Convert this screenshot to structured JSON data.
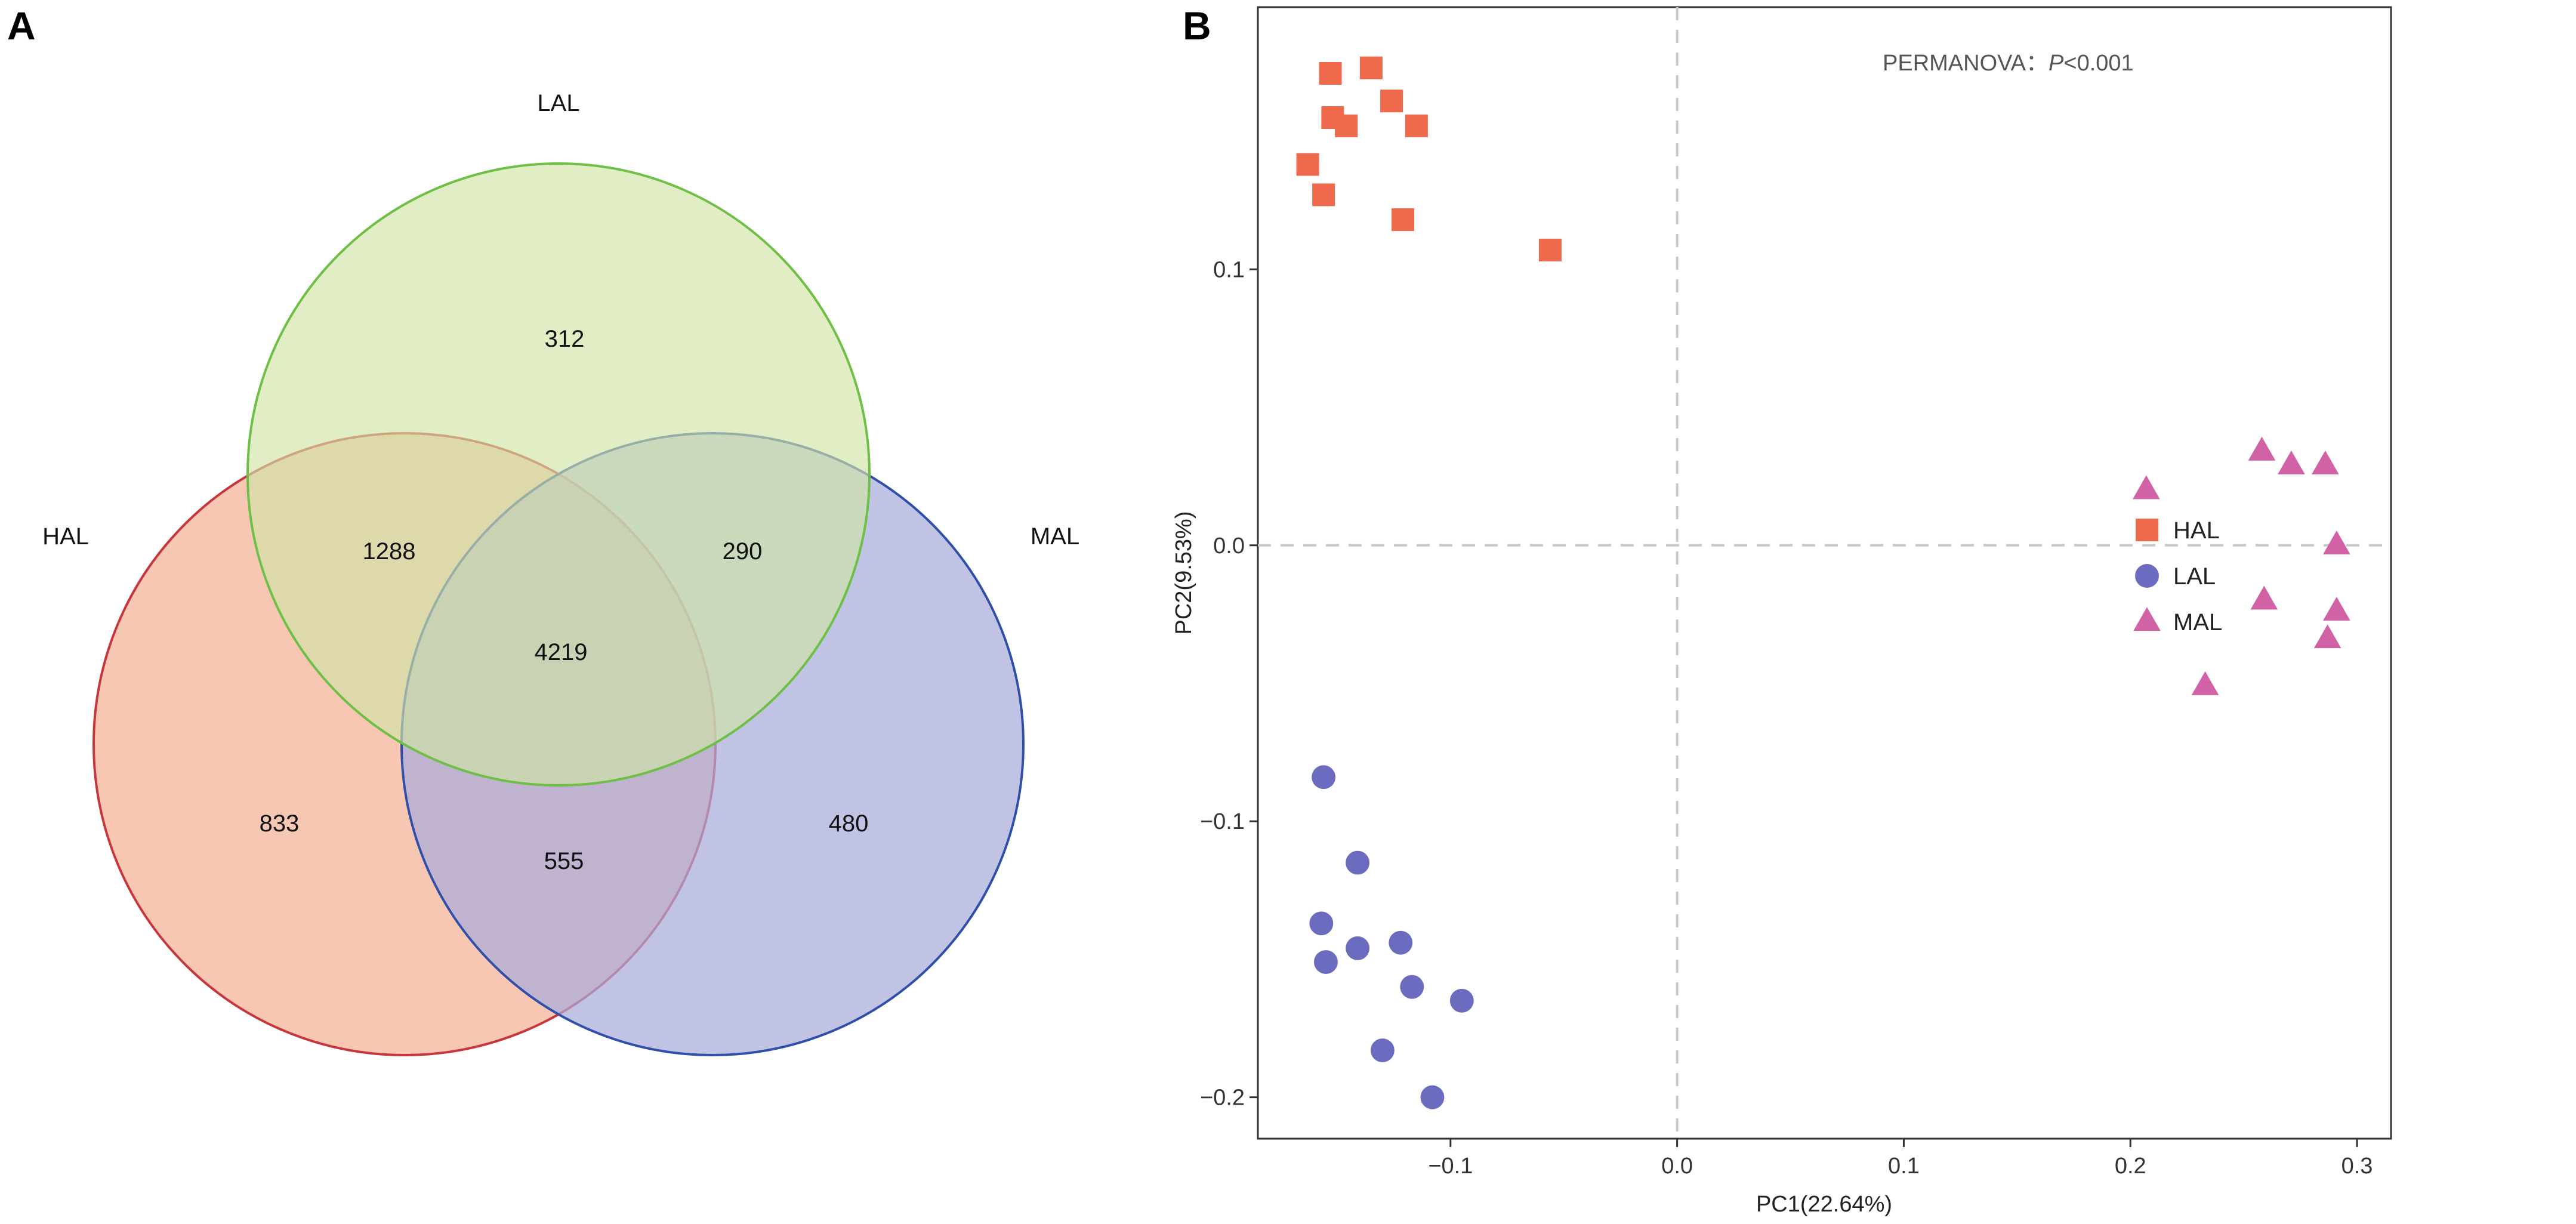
{
  "panels": {
    "a_label": "A",
    "b_label": "B"
  },
  "chart_data": [
    {
      "type": "venn",
      "panel": "A",
      "sets": [
        {
          "name": "LAL",
          "color": "#6dbf45",
          "fill": "#d9eab8"
        },
        {
          "name": "HAL",
          "color": "#c8353a",
          "fill": "#f4b49a"
        },
        {
          "name": "MAL",
          "color": "#2f4fa8",
          "fill": "#a9acd9"
        }
      ],
      "regions": {
        "LAL_only": "312",
        "HAL_LAL": "1288",
        "LAL_MAL": "290",
        "HAL_LAL_MAL": "4219",
        "HAL_only": "833",
        "HAL_MAL": "555",
        "MAL_only": "480"
      }
    },
    {
      "type": "scatter",
      "panel": "B",
      "xlabel": "PC1(22.64%)",
      "ylabel": "PC2(9.53%)",
      "xlim": [
        -0.185,
        0.315
      ],
      "ylim": [
        -0.215,
        0.195
      ],
      "xticks": [
        -0.1,
        0.0,
        0.1,
        0.2,
        0.3
      ],
      "xtick_labels": [
        "−0.1",
        "0.0",
        "0.1",
        "0.2",
        "0.3"
      ],
      "yticks": [
        -0.2,
        -0.1,
        0.0,
        0.1
      ],
      "ytick_labels": [
        "−0.2",
        "−0.1",
        "0.0",
        "0.1"
      ],
      "annotation": {
        "prefix": "PERMANOVA：",
        "p_symbol": "P",
        "suffix": "<0.001"
      },
      "reference_lines": {
        "x": 0.0,
        "y": 0.0
      },
      "legend": {
        "position": "right"
      },
      "series": [
        {
          "name": "HAL",
          "marker": "square",
          "color": "#ef6a4c",
          "points": [
            {
              "x": -0.153,
              "y": 0.171
            },
            {
              "x": -0.135,
              "y": 0.173
            },
            {
              "x": -0.152,
              "y": 0.155
            },
            {
              "x": -0.146,
              "y": 0.152
            },
            {
              "x": -0.126,
              "y": 0.161
            },
            {
              "x": -0.115,
              "y": 0.152
            },
            {
              "x": -0.163,
              "y": 0.138
            },
            {
              "x": -0.156,
              "y": 0.127
            },
            {
              "x": -0.121,
              "y": 0.118
            },
            {
              "x": -0.056,
              "y": 0.107
            }
          ]
        },
        {
          "name": "LAL",
          "marker": "circle",
          "color": "#6b6cbf",
          "points": [
            {
              "x": -0.156,
              "y": -0.084
            },
            {
              "x": -0.141,
              "y": -0.115
            },
            {
              "x": -0.157,
              "y": -0.137
            },
            {
              "x": -0.155,
              "y": -0.151
            },
            {
              "x": -0.141,
              "y": -0.146
            },
            {
              "x": -0.122,
              "y": -0.144
            },
            {
              "x": -0.117,
              "y": -0.16
            },
            {
              "x": -0.095,
              "y": -0.165
            },
            {
              "x": -0.13,
              "y": -0.183
            },
            {
              "x": -0.108,
              "y": -0.2
            }
          ]
        },
        {
          "name": "MAL",
          "marker": "triangle",
          "color": "#d262a6",
          "points": [
            {
              "x": 0.258,
              "y": 0.034
            },
            {
              "x": 0.271,
              "y": 0.029
            },
            {
              "x": 0.286,
              "y": 0.029
            },
            {
              "x": 0.207,
              "y": 0.02
            },
            {
              "x": 0.291,
              "y": 0.0
            },
            {
              "x": 0.259,
              "y": -0.02
            },
            {
              "x": 0.291,
              "y": -0.024
            },
            {
              "x": 0.287,
              "y": -0.034
            },
            {
              "x": 0.233,
              "y": -0.051
            }
          ]
        }
      ]
    }
  ]
}
